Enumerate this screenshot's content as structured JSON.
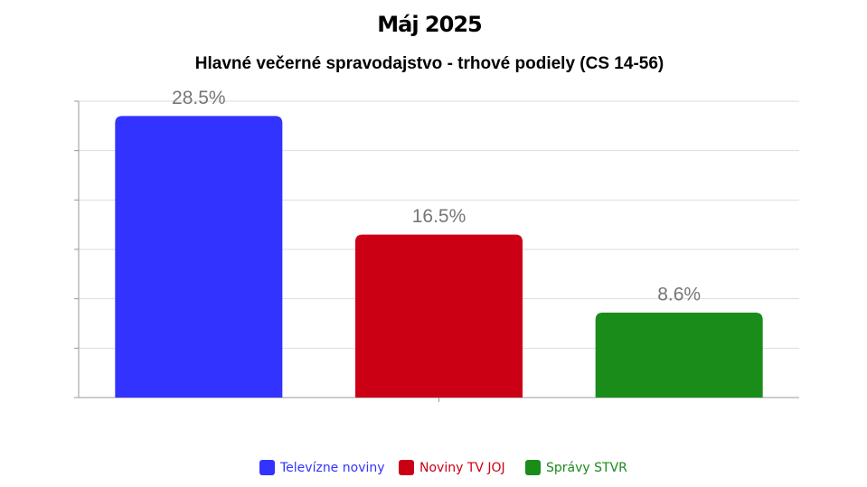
{
  "chart_data": {
    "type": "bar",
    "title": "Máj 2025",
    "subtitle": "Hlavné večerné spravodajstvo - trhové podiely (CS 14-56)",
    "categories": [
      "Televízne noviny",
      "Noviny TV JOJ",
      "Správy STVR"
    ],
    "values": [
      28.5,
      16.5,
      8.6
    ],
    "value_labels": [
      "28.5%",
      "16.5%",
      "8.6%"
    ],
    "colors": [
      "#3333ff",
      "#cc0014",
      "#1a8c1a"
    ],
    "ylim": [
      0,
      30
    ],
    "yticks": [
      0,
      5,
      10,
      15,
      20,
      25,
      30
    ],
    "grid": true,
    "legend": "bottom"
  }
}
